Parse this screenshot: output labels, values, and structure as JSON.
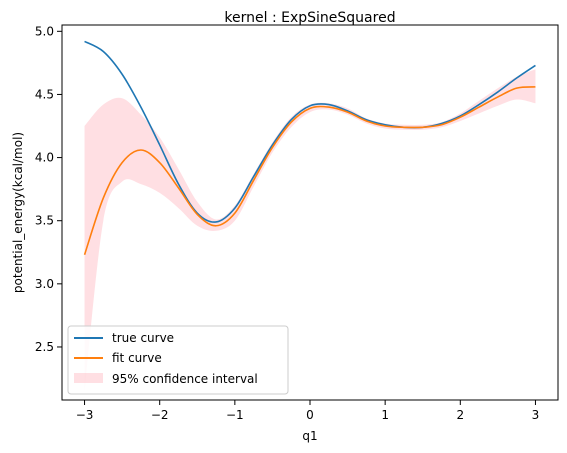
{
  "chart_data": {
    "type": "line",
    "title": "kernel : ExpSineSquared",
    "xlabel": "q1",
    "ylabel": "potential_energy(kcal/mol)",
    "xlim": [
      -3.3,
      3.3
    ],
    "ylim": [
      2.08,
      5.05
    ],
    "xticks": [
      -3,
      -2,
      -1,
      0,
      1,
      2,
      3
    ],
    "yticks": [
      2.5,
      3.0,
      3.5,
      4.0,
      4.5,
      5.0
    ],
    "xtick_labels": [
      "−3",
      "−2",
      "−1",
      "0",
      "1",
      "2",
      "3"
    ],
    "ytick_labels": [
      "2.5",
      "3.0",
      "3.5",
      "4.0",
      "4.5",
      "5.0"
    ],
    "grid": false,
    "legend_position": "lower-left",
    "x": [
      -3.0,
      -2.75,
      -2.5,
      -2.25,
      -2.0,
      -1.75,
      -1.5,
      -1.25,
      -1.0,
      -0.75,
      -0.5,
      -0.25,
      0.0,
      0.25,
      0.5,
      0.75,
      1.0,
      1.25,
      1.5,
      1.75,
      2.0,
      2.25,
      2.5,
      2.75,
      3.0
    ],
    "series": [
      {
        "name": "true curve",
        "color": "#1f77b4",
        "values": [
          4.92,
          4.84,
          4.66,
          4.4,
          4.1,
          3.79,
          3.56,
          3.49,
          3.6,
          3.85,
          4.1,
          4.3,
          4.41,
          4.42,
          4.37,
          4.3,
          4.26,
          4.24,
          4.24,
          4.27,
          4.33,
          4.42,
          4.52,
          4.63,
          4.73
        ]
      },
      {
        "name": "fit curve",
        "color": "#ff7f0e",
        "values": [
          3.23,
          3.68,
          3.96,
          4.06,
          3.96,
          3.76,
          3.55,
          3.46,
          3.56,
          3.82,
          4.08,
          4.28,
          4.39,
          4.4,
          4.36,
          4.29,
          4.25,
          4.24,
          4.24,
          4.26,
          4.32,
          4.4,
          4.48,
          4.55,
          4.56
        ]
      }
    ],
    "confidence_interval": {
      "name": "95% confidence interval",
      "color": "#ffb0b8",
      "lower": [
        2.15,
        3.5,
        3.81,
        3.79,
        3.72,
        3.6,
        3.46,
        3.42,
        3.5,
        3.77,
        4.04,
        4.24,
        4.36,
        4.38,
        4.34,
        4.27,
        4.23,
        4.22,
        4.22,
        4.24,
        4.29,
        4.35,
        4.41,
        4.46,
        4.43
      ],
      "upper": [
        4.25,
        4.42,
        4.47,
        4.34,
        4.16,
        3.91,
        3.65,
        3.51,
        3.62,
        3.87,
        4.12,
        4.32,
        4.42,
        4.43,
        4.39,
        4.31,
        4.27,
        4.26,
        4.26,
        4.28,
        4.35,
        4.45,
        4.55,
        4.64,
        4.7
      ]
    }
  }
}
